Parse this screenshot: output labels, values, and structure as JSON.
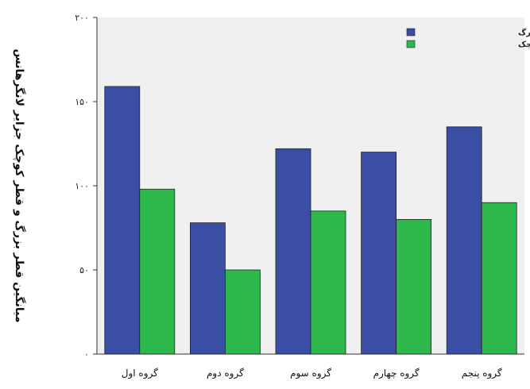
{
  "chart_data": {
    "type": "bar",
    "title": "",
    "xlabel": "",
    "ylabel": "میانگین قطر بزرگ و قطر کوچک جزایر لانگرهانس",
    "ylim": [
      0,
      200
    ],
    "yticks": [
      {
        "value": 0,
        "label": "۰"
      },
      {
        "value": 50,
        "label": "۵۰"
      },
      {
        "value": 100,
        "label": "۱۰۰"
      },
      {
        "value": 150,
        "label": "۱۵۰"
      },
      {
        "value": 200,
        "label": "۲۰۰"
      }
    ],
    "categories": [
      "گروه اول",
      "گروه دوم",
      "گروه سوم",
      "گروه چهارم",
      "گروه پنجم"
    ],
    "series": [
      {
        "name": "میانگین قطر بزرگ",
        "color": "#3a4ea6",
        "values": [
          159,
          78,
          122,
          120,
          135
        ]
      },
      {
        "name": "میانگین قطر کوچک",
        "color": "#2db84b",
        "values": [
          98,
          50,
          85,
          80,
          90
        ]
      }
    ],
    "legend_position": "top-right",
    "plot_background": "#f0f0f0",
    "grid": false
  }
}
